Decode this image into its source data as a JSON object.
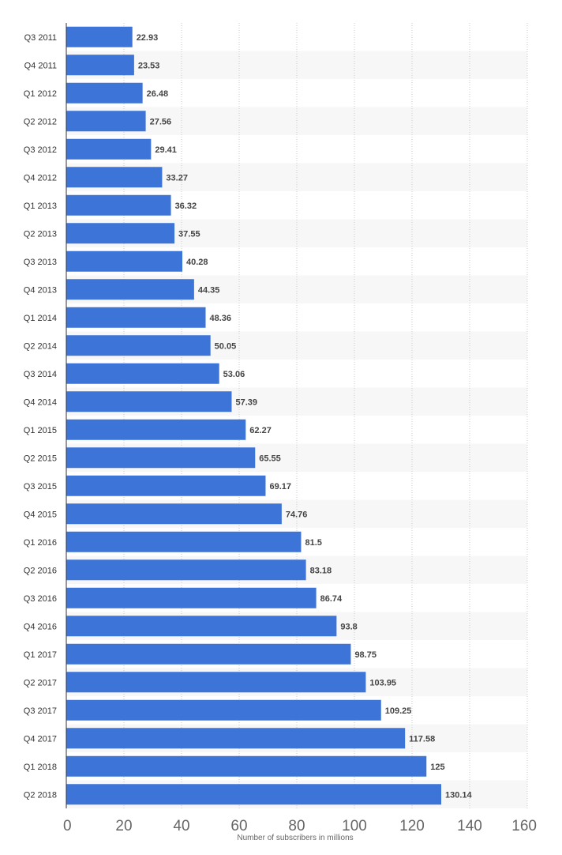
{
  "chart_data": {
    "type": "bar",
    "orientation": "horizontal",
    "title": "",
    "xlabel": "Number of subscribers in millions",
    "ylabel": "",
    "xlim": [
      0,
      160
    ],
    "ticks": [
      0,
      20,
      40,
      60,
      80,
      100,
      120,
      140,
      160
    ],
    "grid": true,
    "categories": [
      "Q3 2011",
      "Q4 2011",
      "Q1 2012",
      "Q2 2012",
      "Q3 2012",
      "Q4 2012",
      "Q1 2013",
      "Q2 2013",
      "Q3 2013",
      "Q4 2013",
      "Q1 2014",
      "Q2 2014",
      "Q3 2014",
      "Q4 2014",
      "Q1 2015",
      "Q2 2015",
      "Q3 2015",
      "Q4 2015",
      "Q1 2016",
      "Q2 2016",
      "Q3 2016",
      "Q4 2016",
      "Q1 2017",
      "Q2 2017",
      "Q3 2017",
      "Q4 2017",
      "Q1 2018",
      "Q2 2018"
    ],
    "values": [
      22.93,
      23.53,
      26.48,
      27.56,
      29.41,
      33.27,
      36.32,
      37.55,
      40.28,
      44.35,
      48.36,
      50.05,
      53.06,
      57.39,
      62.27,
      65.55,
      69.17,
      74.76,
      81.5,
      83.18,
      86.74,
      93.8,
      98.75,
      103.95,
      109.25,
      117.58,
      125,
      130.14
    ],
    "bar_color": "#3c74d8",
    "grid_color": "#c8c8c8",
    "band_color": "#f7f7f7"
  }
}
